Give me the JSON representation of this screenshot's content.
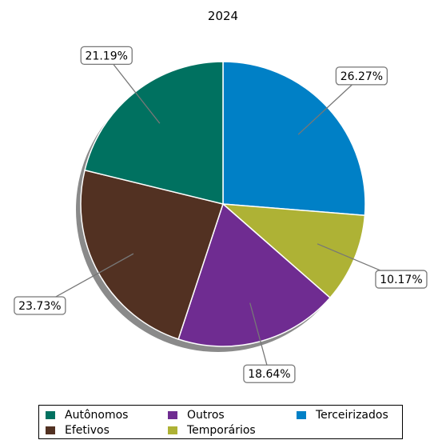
{
  "chart_data": {
    "type": "pie",
    "title": "2024",
    "categories": [
      "Terceirizados",
      "Temporários",
      "Outros",
      "Efetivos",
      "Autônomos"
    ],
    "values": [
      26.27,
      10.17,
      18.64,
      23.73,
      21.19
    ],
    "labels": [
      "26.27%",
      "10.17%",
      "18.64%",
      "23.73%",
      "21.19%"
    ],
    "colors": [
      "#0080c6",
      "#aeb235",
      "#6f2c91",
      "#523122",
      "#007160"
    ],
    "start_angle": "12 o'clock",
    "direction": "clockwise",
    "shadow": true,
    "legend_placement": "bottom"
  },
  "legend": {
    "items": [
      {
        "label": "Autônomos",
        "color": "#007160"
      },
      {
        "label": "Outros",
        "color": "#6f2c91"
      },
      {
        "label": "Terceirizados",
        "color": "#0080c6"
      },
      {
        "label": "Efetivos",
        "color": "#523122"
      },
      {
        "label": "Temporários",
        "color": "#aeb235"
      }
    ]
  }
}
